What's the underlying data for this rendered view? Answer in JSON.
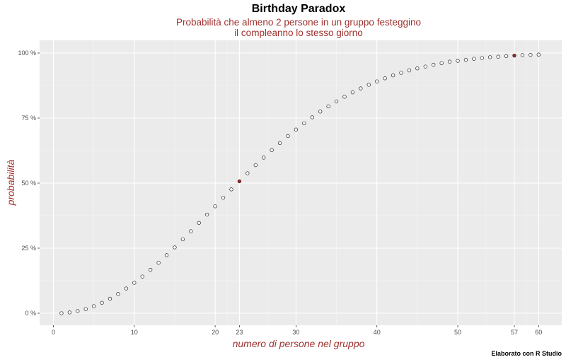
{
  "chart_data": {
    "type": "scatter",
    "title": "Birthday Paradox",
    "subtitle_lines": [
      "Probabilità che almeno 2 persone in un gruppo festeggino",
      "il compleanno lo stesso giorno"
    ],
    "xlabel": "numero di persone nel gruppo",
    "ylabel": "probabilità",
    "caption": "Elaborato con R Studio",
    "xlim": [
      0,
      61
    ],
    "ylim": [
      0,
      100
    ],
    "x_ticks": [
      0,
      10,
      20,
      23,
      30,
      40,
      50,
      57,
      60
    ],
    "y_ticks": [
      0,
      25,
      50,
      75,
      100
    ],
    "y_tick_labels": [
      "0 %",
      "25 %",
      "50 %",
      "75 %",
      "100 %"
    ],
    "grid": true,
    "highlight_x": [
      23,
      57
    ],
    "highlight_color": "#b22222",
    "point_color": "#ffffff",
    "x": [
      1,
      2,
      3,
      4,
      5,
      6,
      7,
      8,
      9,
      10,
      11,
      12,
      13,
      14,
      15,
      16,
      17,
      18,
      19,
      20,
      21,
      22,
      23,
      24,
      25,
      26,
      27,
      28,
      29,
      30,
      31,
      32,
      33,
      34,
      35,
      36,
      37,
      38,
      39,
      40,
      41,
      42,
      43,
      44,
      45,
      46,
      47,
      48,
      49,
      50,
      51,
      52,
      53,
      54,
      55,
      56,
      57,
      58,
      59,
      60
    ],
    "y": [
      0,
      0.3,
      0.8,
      1.6,
      2.7,
      4.0,
      5.6,
      7.4,
      9.5,
      11.7,
      14.1,
      16.7,
      19.4,
      22.3,
      25.3,
      28.4,
      31.5,
      34.7,
      37.9,
      41.1,
      44.4,
      47.6,
      50.7,
      53.8,
      56.9,
      59.8,
      62.7,
      65.4,
      68.1,
      70.6,
      73.0,
      75.3,
      77.5,
      79.5,
      81.4,
      83.2,
      84.9,
      86.4,
      87.8,
      89.1,
      90.3,
      91.4,
      92.4,
      93.3,
      94.1,
      94.8,
      95.5,
      96.1,
      96.7,
      97.0,
      97.4,
      97.8,
      98.1,
      98.4,
      98.6,
      98.8,
      99.0,
      99.2,
      99.3,
      99.4
    ]
  }
}
